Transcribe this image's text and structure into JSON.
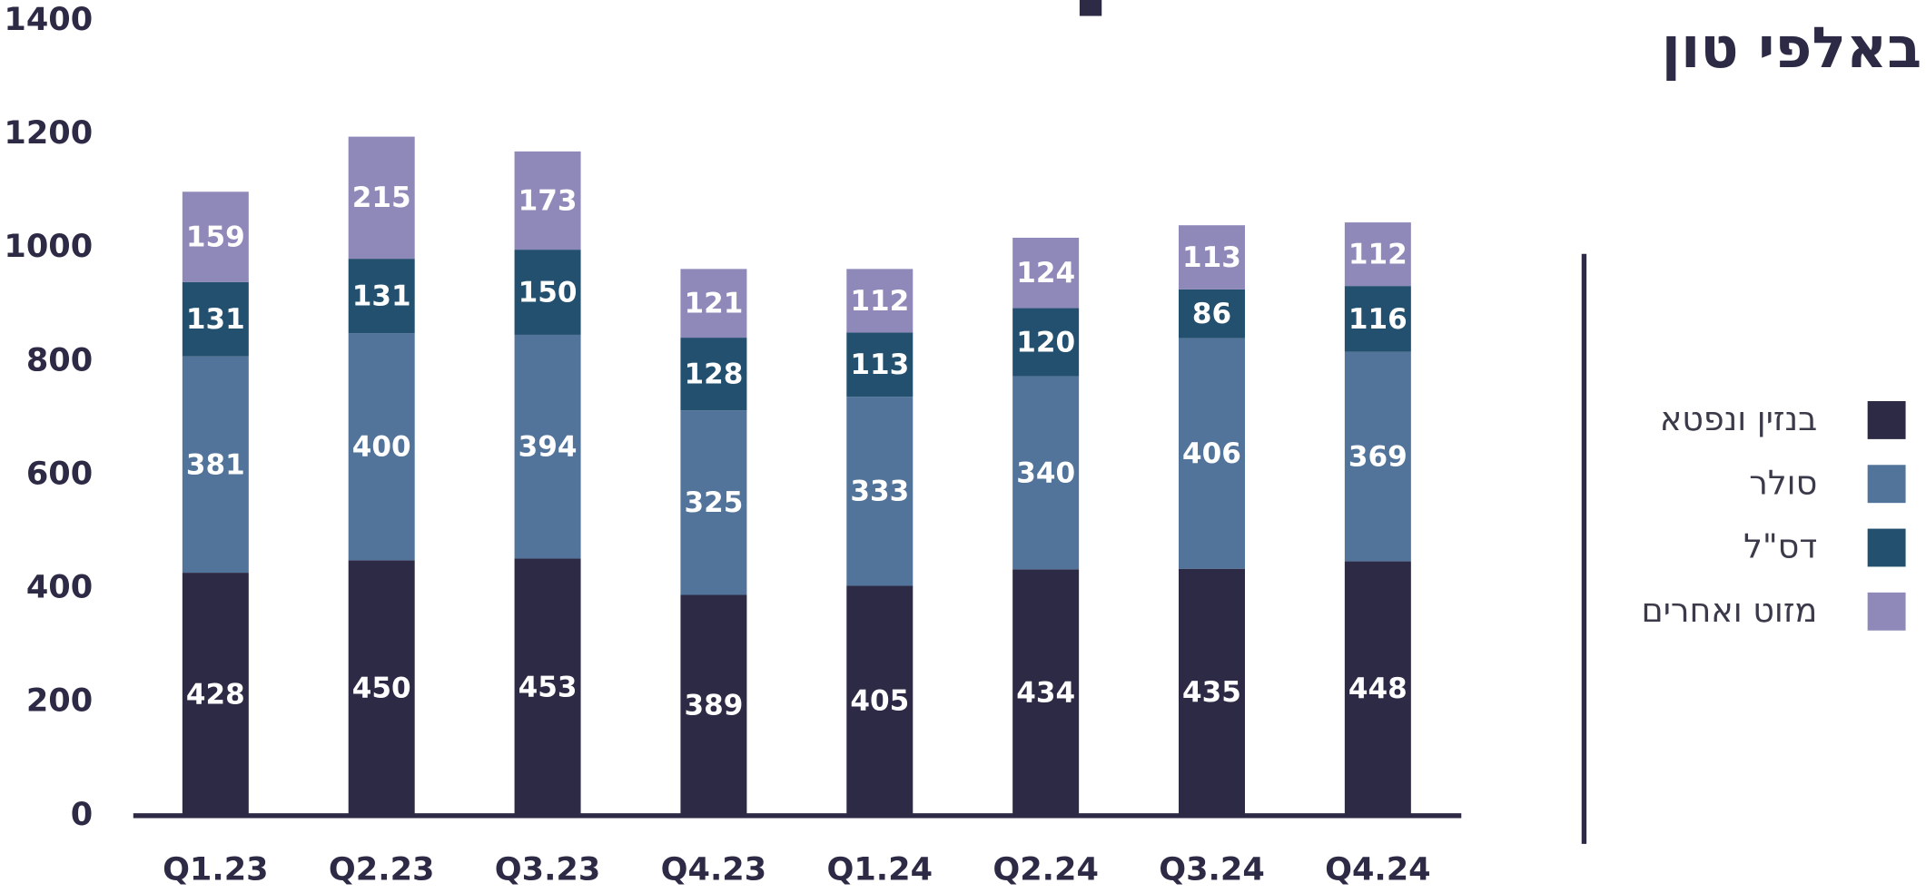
{
  "chart_data": {
    "type": "stacked_bar",
    "title": "באלפי טון",
    "categories": [
      "Q1.23",
      "Q2.23",
      "Q3.23",
      "Q4.23",
      "Q1.24",
      "Q2.24",
      "Q3.24",
      "Q4.24"
    ],
    "series": [
      {
        "name": "בנזין ונפטא",
        "color": "#2d2a45",
        "values": [
          428,
          450,
          453,
          389,
          405,
          434,
          435,
          448
        ]
      },
      {
        "name": "סולר",
        "color": "#52739a",
        "values": [
          381,
          400,
          394,
          325,
          333,
          340,
          406,
          369
        ]
      },
      {
        "name": "דס\"ל",
        "color": "#23506e",
        "values": [
          131,
          131,
          150,
          128,
          113,
          120,
          86,
          116
        ]
      },
      {
        "name": "מזוט ואחרים",
        "color": "#8e89b9",
        "values": [
          159,
          215,
          173,
          121,
          112,
          124,
          113,
          112
        ]
      }
    ],
    "ylim": [
      0,
      1400
    ],
    "yticks": [
      0,
      200,
      400,
      600,
      800,
      1000,
      1200,
      1400
    ],
    "legend": "right"
  }
}
